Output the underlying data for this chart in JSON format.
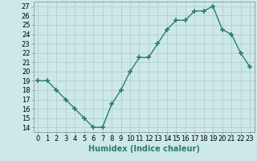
{
  "x": [
    0,
    1,
    2,
    3,
    4,
    5,
    6,
    7,
    8,
    9,
    10,
    11,
    12,
    13,
    14,
    15,
    16,
    17,
    18,
    19,
    20,
    21,
    22,
    23
  ],
  "y": [
    19,
    19,
    18,
    17,
    16,
    15,
    14,
    14,
    16.5,
    18,
    20,
    21.5,
    21.5,
    23,
    24.5,
    25.5,
    25.5,
    26.5,
    26.5,
    27,
    24.5,
    24,
    22,
    20.5
  ],
  "line_color": "#2e7d6e",
  "marker": "+",
  "marker_size": 5,
  "bg_color": "#cce8e8",
  "grid_color": "#b0d0d0",
  "xlabel": "Humidex (Indice chaleur)",
  "xlim": [
    -0.5,
    23.5
  ],
  "ylim": [
    13.5,
    27.5
  ],
  "yticks": [
    14,
    15,
    16,
    17,
    18,
    19,
    20,
    21,
    22,
    23,
    24,
    25,
    26,
    27
  ],
  "xticks": [
    0,
    1,
    2,
    3,
    4,
    5,
    6,
    7,
    8,
    9,
    10,
    11,
    12,
    13,
    14,
    15,
    16,
    17,
    18,
    19,
    20,
    21,
    22,
    23
  ],
  "xtick_labels": [
    "0",
    "1",
    "2",
    "3",
    "4",
    "5",
    "6",
    "7",
    "8",
    "9",
    "10",
    "11",
    "12",
    "13",
    "14",
    "15",
    "16",
    "17",
    "18",
    "19",
    "20",
    "21",
    "22",
    "23"
  ],
  "xlabel_fontsize": 7,
  "tick_fontsize": 6,
  "line_width": 1.0
}
